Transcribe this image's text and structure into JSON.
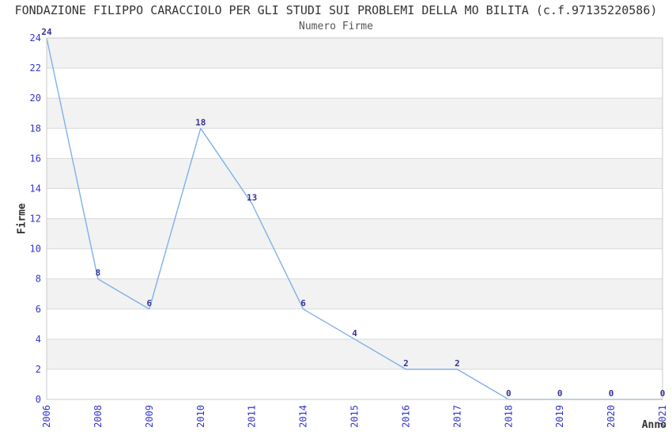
{
  "chart_data": {
    "type": "line",
    "title": "FONDAZIONE FILIPPO CARACCIOLO PER GLI STUDI SUI PROBLEMI DELLA MO BILITA (c.f.97135220586)",
    "subtitle": "Numero Firme",
    "xlabel": "Anno",
    "ylabel": "Firme",
    "categories": [
      "2006",
      "2008",
      "2009",
      "2010",
      "2011",
      "2014",
      "2015",
      "2016",
      "2017",
      "2018",
      "2019",
      "2020",
      "2021"
    ],
    "values": [
      24,
      8,
      6,
      18,
      13,
      6,
      4,
      2,
      2,
      0,
      0,
      0,
      0
    ],
    "data_labels": [
      "24",
      "8",
      "6",
      "18",
      "13",
      "6",
      "4",
      "2",
      "2",
      "0",
      "0",
      "0",
      "0"
    ],
    "ylim": [
      0,
      24
    ],
    "ytick_step": 2,
    "ytick_labels": [
      "0",
      "2",
      "4",
      "6",
      "8",
      "10",
      "12",
      "14",
      "16",
      "18",
      "20",
      "22",
      "24"
    ],
    "grid": "alternating-horizontal-bands",
    "legend": "none",
    "markers": "none",
    "colors": {
      "line": "#7db1e8",
      "band": "#f2f2f2",
      "gridline": "#d9d9d9",
      "plot_border": "#c9c9c9",
      "axis_tick_label": "#3333cc",
      "data_label": "#333399",
      "title_text": "#333333",
      "subtitle_text": "#555555",
      "axis_title": "#333333",
      "plot_background": "#ffffff"
    }
  }
}
